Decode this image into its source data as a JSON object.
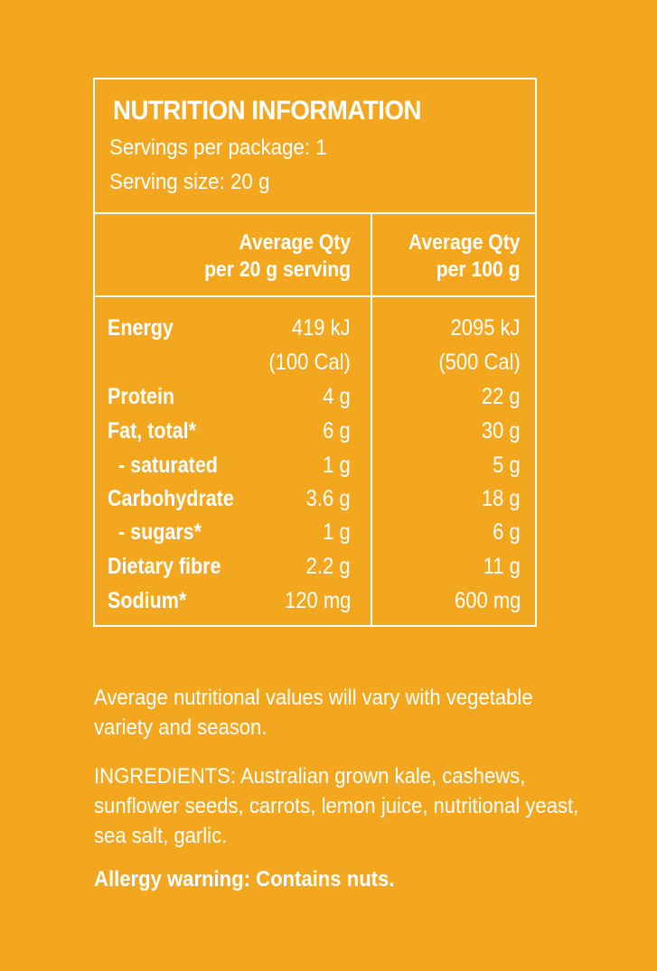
{
  "panel": {
    "title": "NUTRITION INFORMATION",
    "servings_per_package": "Servings per package: 1",
    "serving_size": "Serving size: 20 g",
    "column_headers": [
      {
        "line1": "Average Qty",
        "line2": "per 20 g serving"
      },
      {
        "line1": "Average Qty",
        "line2": "per 100 g"
      }
    ],
    "rows": [
      {
        "label": "Energy",
        "per_serving": "419 kJ",
        "per_100g": "2095 kJ"
      },
      {
        "label": "",
        "per_serving": "(100 Cal)",
        "per_100g": "(500 Cal)"
      },
      {
        "label": "Protein",
        "per_serving": "4 g",
        "per_100g": "22 g"
      },
      {
        "label": "Fat, total*",
        "per_serving": "6 g",
        "per_100g": "30 g"
      },
      {
        "label": "- saturated",
        "per_serving": "1 g",
        "per_100g": "5 g"
      },
      {
        "label": "Carbohydrate",
        "per_serving": "3.6 g",
        "per_100g": "18 g"
      },
      {
        "label": "- sugars*",
        "per_serving": "1 g",
        "per_100g": "6 g"
      },
      {
        "label": "Dietary fibre",
        "per_serving": "2.2 g",
        "per_100g": "11 g"
      },
      {
        "label": "Sodium*",
        "per_serving": "120 mg",
        "per_100g": "600 mg"
      }
    ]
  },
  "notes": {
    "variation": "Average nutritional values will vary with vegetable variety and season.",
    "ingredients": "INGREDIENTS: Australian grown kale, cashews, sunflower seeds, carrots, lemon juice, nutritional yeast, sea salt, garlic.",
    "allergy": "Allergy warning: Contains nuts."
  },
  "colors": {
    "background": "#F3A71F",
    "foreground": "#FFFFFF"
  }
}
